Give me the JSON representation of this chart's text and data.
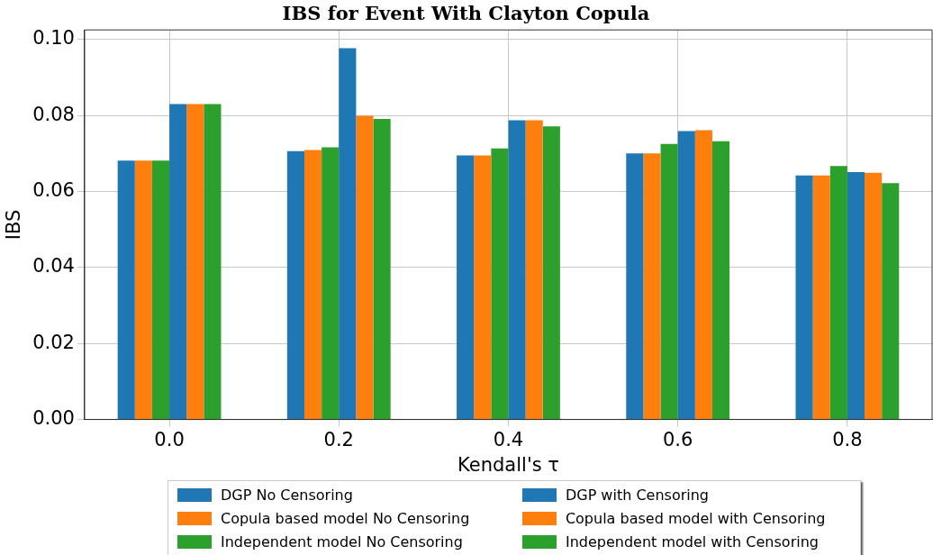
{
  "chart_data": {
    "type": "bar",
    "title": "IBS for Event With Clayton Copula",
    "xlabel": "Kendall's τ",
    "ylabel": "IBS",
    "categories": [
      "0.0",
      "0.2",
      "0.4",
      "0.6",
      "0.8"
    ],
    "series": [
      {
        "name": "DGP No Censoring",
        "color": "#1f77b4",
        "values": [
          0.0681,
          0.0706,
          0.0695,
          0.07,
          0.0642
        ]
      },
      {
        "name": "Copula based model No Censoring",
        "color": "#ff7f0e",
        "values": [
          0.0681,
          0.0709,
          0.0695,
          0.07,
          0.0642
        ]
      },
      {
        "name": "Independent model No Censoring",
        "color": "#2ca02c",
        "values": [
          0.0681,
          0.0716,
          0.0713,
          0.0725,
          0.0667
        ]
      },
      {
        "name": "DGP with Censoring",
        "color": "#1f77b4",
        "values": [
          0.083,
          0.0977,
          0.0787,
          0.0759,
          0.0651
        ]
      },
      {
        "name": "Copula based model with Censoring",
        "color": "#ff7f0e",
        "values": [
          0.083,
          0.0799,
          0.0787,
          0.0761,
          0.0649
        ]
      },
      {
        "name": "Independent model with Censoring",
        "color": "#2ca02c",
        "values": [
          0.083,
          0.0791,
          0.0771,
          0.0732,
          0.0622
        ]
      }
    ],
    "ylim": [
      0,
      0.1025
    ],
    "yticks": [
      {
        "value": 0,
        "label": "0.00"
      },
      {
        "value": 0.02,
        "label": "0.02"
      },
      {
        "value": 0.04,
        "label": "0.04"
      },
      {
        "value": 0.06,
        "label": "0.06"
      },
      {
        "value": 0.08,
        "label": "0.08"
      },
      {
        "value": 0.1,
        "label": "0.10"
      }
    ],
    "grid": true,
    "legend": "bottom"
  }
}
